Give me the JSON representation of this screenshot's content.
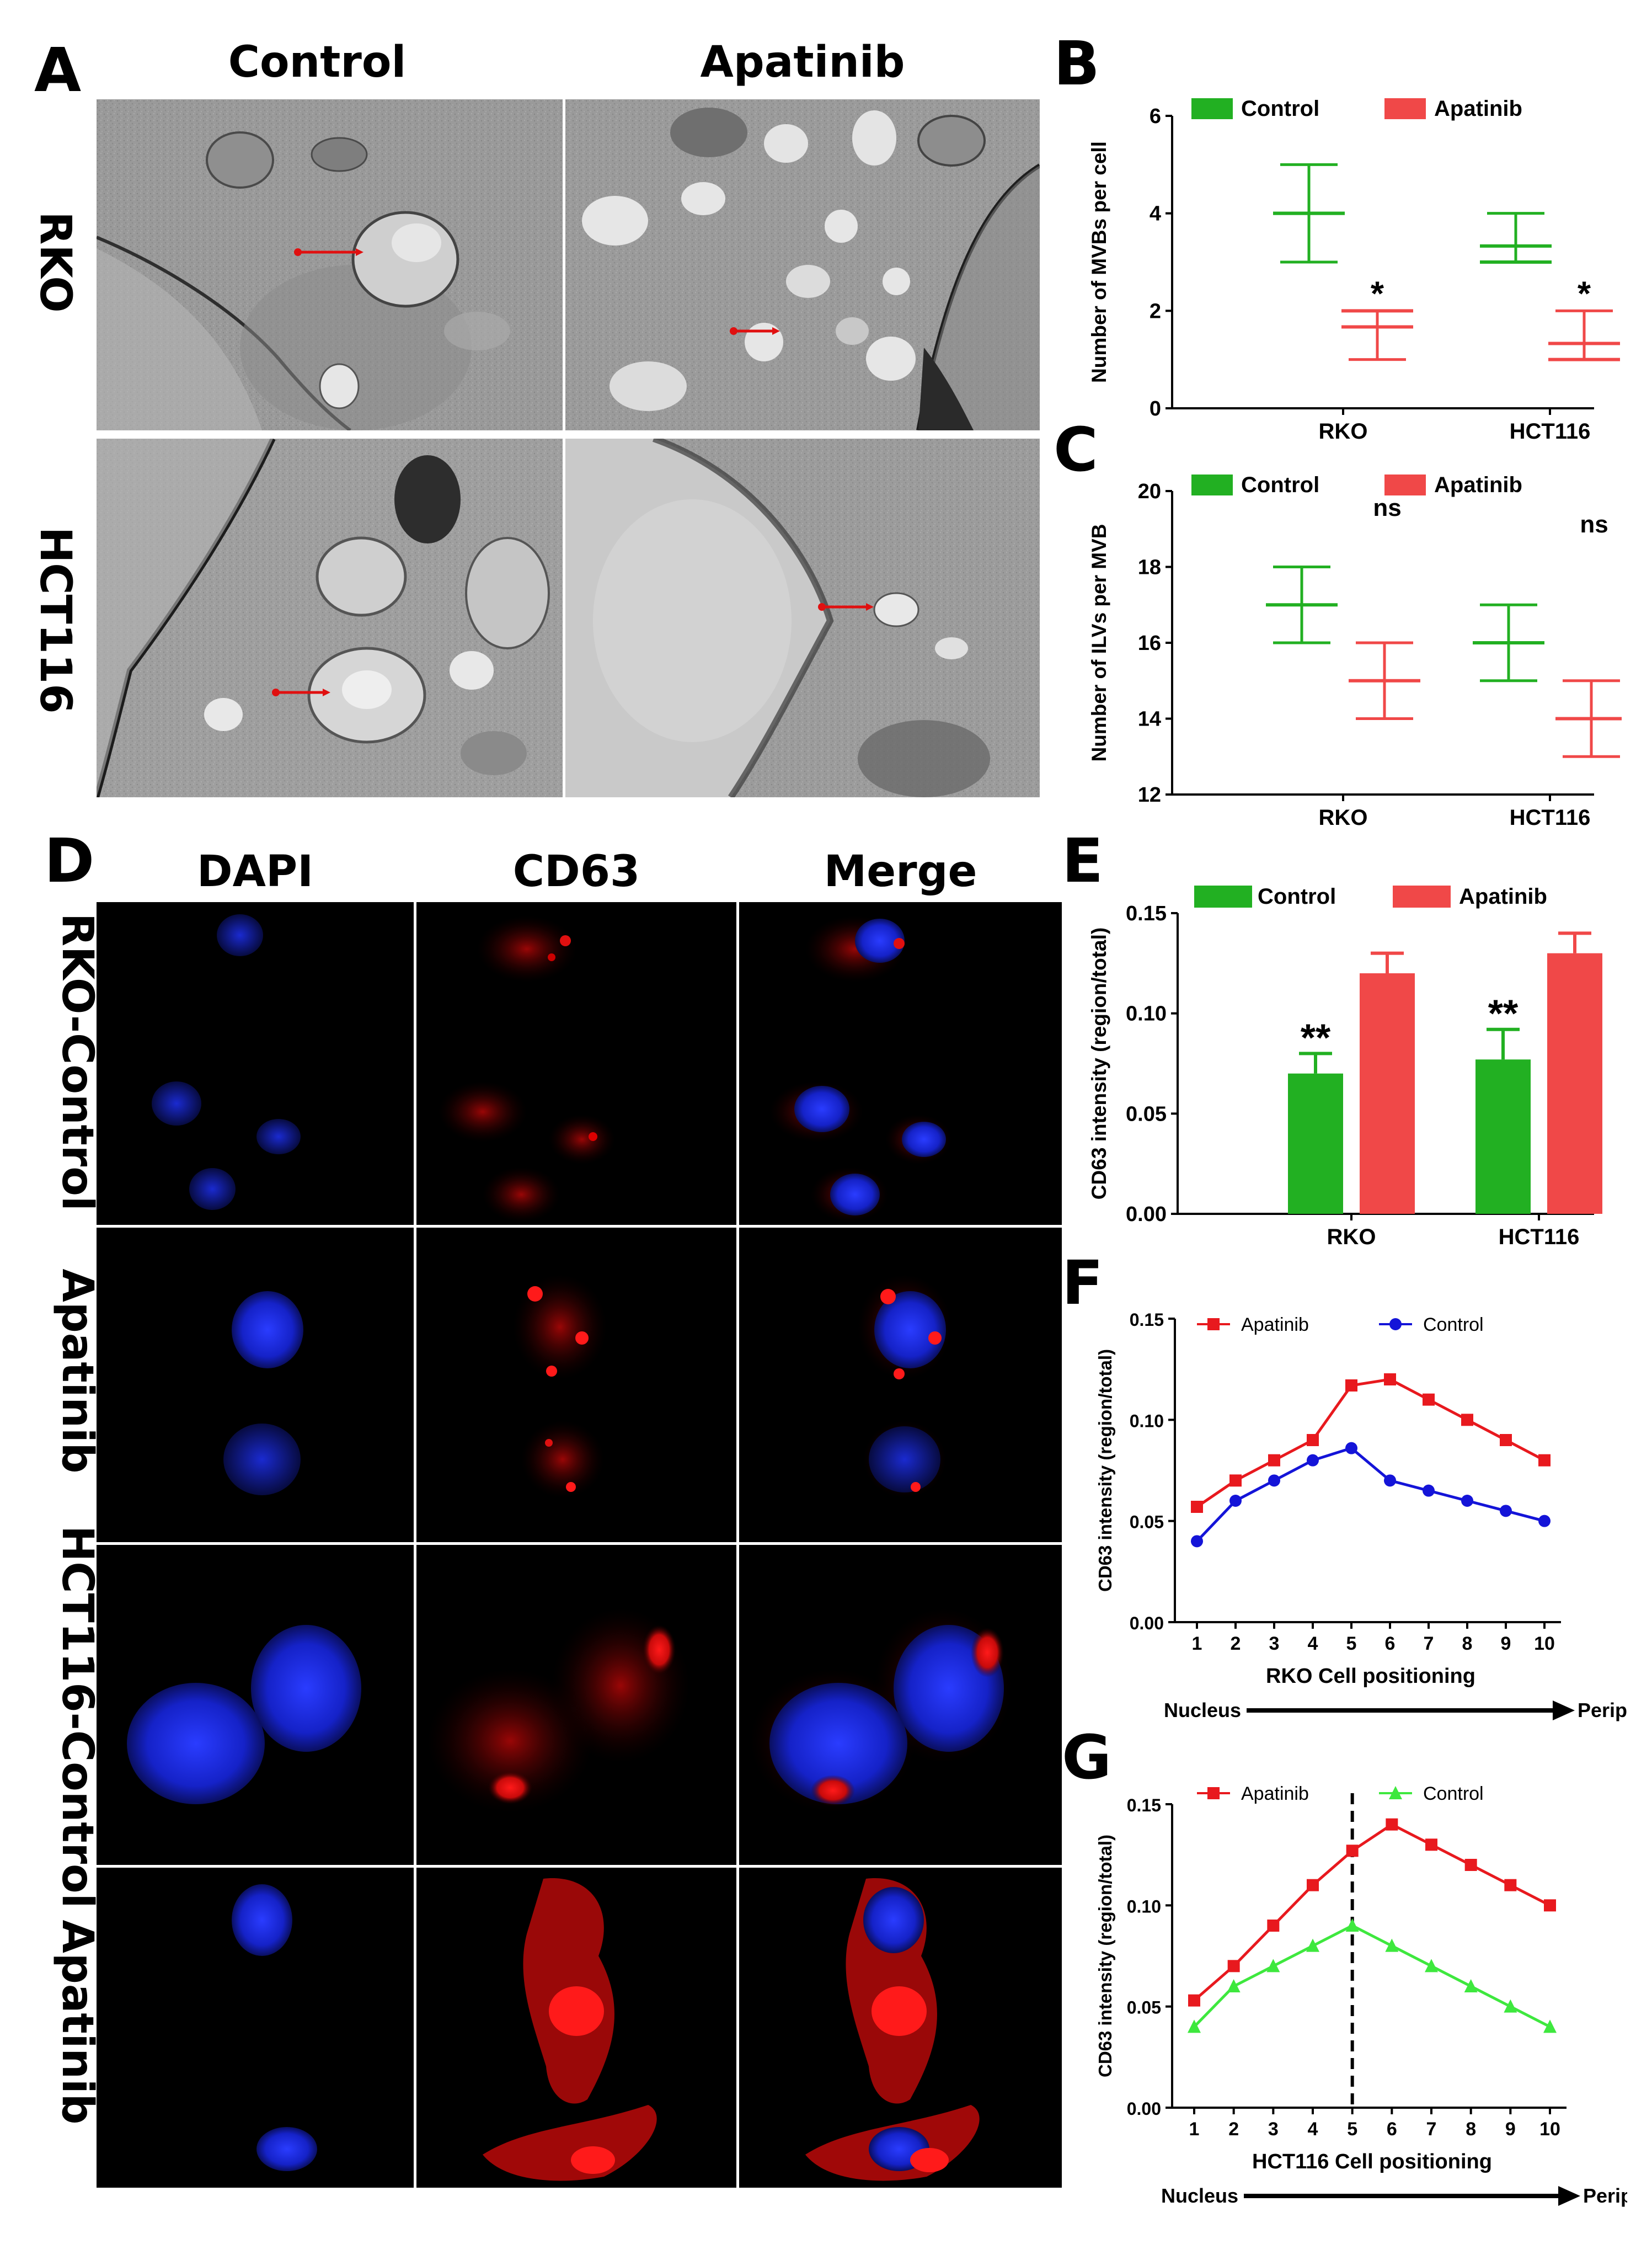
{
  "panels": {
    "A": {
      "letter": "A",
      "columns": [
        "Control",
        "Apatinib"
      ],
      "rows": [
        "RKO",
        "HCT116"
      ]
    },
    "B": {
      "letter": "B"
    },
    "C": {
      "letter": "C"
    },
    "D": {
      "letter": "D",
      "columns": [
        "DAPI",
        "CD63",
        "Merge"
      ],
      "rows": [
        "RKO-Control",
        "Apatinib",
        "HCT116-Control",
        "Apatinib"
      ]
    },
    "E": {
      "letter": "E"
    },
    "F": {
      "letter": "F"
    },
    "G": {
      "letter": "G"
    }
  },
  "colors": {
    "control_green": "#22b022",
    "apatinib_red": "#f04848",
    "line_red": "#e8191e",
    "line_blue": "#1414d8",
    "line_green": "#3ee83e"
  },
  "chart_data": [
    {
      "id": "B",
      "type": "scatter",
      "style": "mean-with-error-bars",
      "categories": [
        "RKO",
        "HCT116"
      ],
      "ylabel": "Number of MVBs per cell",
      "ylim": [
        0,
        6
      ],
      "yticks": [
        0,
        2,
        4,
        6
      ],
      "legend": "top",
      "series": [
        {
          "name": "Control",
          "color": "#22b022",
          "mean": [
            4,
            3.33
          ],
          "low": [
            3,
            3
          ],
          "high": [
            5,
            4
          ],
          "median": [
            4,
            3
          ]
        },
        {
          "name": "Apatinib",
          "color": "#f04848",
          "mean": [
            1.67,
            1.33
          ],
          "low": [
            1,
            1
          ],
          "high": [
            2,
            2
          ],
          "median": [
            2,
            1
          ]
        }
      ],
      "annotations": [
        {
          "category": "RKO",
          "series": "Apatinib",
          "text": "*"
        },
        {
          "category": "HCT116",
          "series": "Apatinib",
          "text": "*"
        }
      ]
    },
    {
      "id": "C",
      "type": "scatter",
      "style": "mean-with-error-bars",
      "categories": [
        "RKO",
        "HCT116"
      ],
      "ylabel": "Number of ILVs per MVB",
      "ylim": [
        12,
        20
      ],
      "yticks": [
        12,
        14,
        16,
        18,
        20
      ],
      "legend": "top",
      "series": [
        {
          "name": "Control",
          "color": "#22b022",
          "mean": [
            17,
            16
          ],
          "low": [
            16,
            15
          ],
          "high": [
            18,
            17
          ]
        },
        {
          "name": "Apatinib",
          "color": "#f04848",
          "mean": [
            15,
            14
          ],
          "low": [
            14,
            13
          ],
          "high": [
            16,
            15
          ]
        }
      ],
      "annotations": [
        {
          "category": "RKO",
          "text": "ns"
        },
        {
          "category": "HCT116",
          "text": "ns"
        }
      ]
    },
    {
      "id": "E",
      "type": "bar",
      "categories": [
        "RKO",
        "HCT116"
      ],
      "ylabel": "CD63 intensity (region/total)",
      "ylim": [
        0,
        0.15
      ],
      "yticks": [
        "0.00",
        "0.05",
        "0.10",
        "0.15"
      ],
      "legend": "top",
      "series": [
        {
          "name": "Control",
          "color": "#22b022",
          "values": [
            0.07,
            0.077
          ],
          "errors": [
            0.01,
            0.015
          ]
        },
        {
          "name": "Apatinib",
          "color": "#f04848",
          "values": [
            0.12,
            0.13
          ],
          "errors": [
            0.01,
            0.01
          ]
        }
      ],
      "annotations": [
        {
          "category": "RKO",
          "series": "Control",
          "text": "**"
        },
        {
          "category": "HCT116",
          "series": "Control",
          "text": "**"
        }
      ]
    },
    {
      "id": "F",
      "type": "line",
      "x": [
        1,
        2,
        3,
        4,
        5,
        6,
        7,
        8,
        9,
        10
      ],
      "ylabel": "CD63 intensity (region/total)",
      "xlabel": "RKO Cell positioning",
      "ylim": [
        0,
        0.15
      ],
      "yticks": [
        "0.00",
        "0.05",
        "0.10",
        "0.15"
      ],
      "legend": "top",
      "axis_arrow": {
        "start": "Nucleus",
        "end": "Periphery"
      },
      "series": [
        {
          "name": "Apatinib",
          "color": "#e8191e",
          "marker": "square",
          "values": [
            0.057,
            0.07,
            0.08,
            0.09,
            0.117,
            0.12,
            0.11,
            0.1,
            0.09,
            0.08
          ]
        },
        {
          "name": "Control",
          "color": "#1414d8",
          "marker": "circle",
          "values": [
            0.04,
            0.06,
            0.07,
            0.08,
            0.086,
            0.07,
            0.065,
            0.06,
            0.055,
            0.05
          ]
        }
      ]
    },
    {
      "id": "G",
      "type": "line",
      "x": [
        1,
        2,
        3,
        4,
        5,
        6,
        7,
        8,
        9,
        10
      ],
      "ylabel": "CD63 intensity (region/total)",
      "xlabel": "HCT116 Cell positioning",
      "ylim": [
        0,
        0.15
      ],
      "yticks": [
        "0.00",
        "0.05",
        "0.10",
        "0.15"
      ],
      "legend": "top",
      "axis_arrow": {
        "start": "Nucleus",
        "end": "Periphery"
      },
      "reference_line_x": 5,
      "series": [
        {
          "name": "Apatinib",
          "color": "#e8191e",
          "marker": "square",
          "values": [
            0.053,
            0.07,
            0.09,
            0.11,
            0.127,
            0.14,
            0.13,
            0.12,
            0.11,
            0.1
          ]
        },
        {
          "name": "Control",
          "color": "#3ee83e",
          "marker": "triangle",
          "values": [
            0.04,
            0.06,
            0.07,
            0.08,
            0.09,
            0.08,
            0.07,
            0.06,
            0.05,
            0.04
          ]
        }
      ]
    }
  ]
}
